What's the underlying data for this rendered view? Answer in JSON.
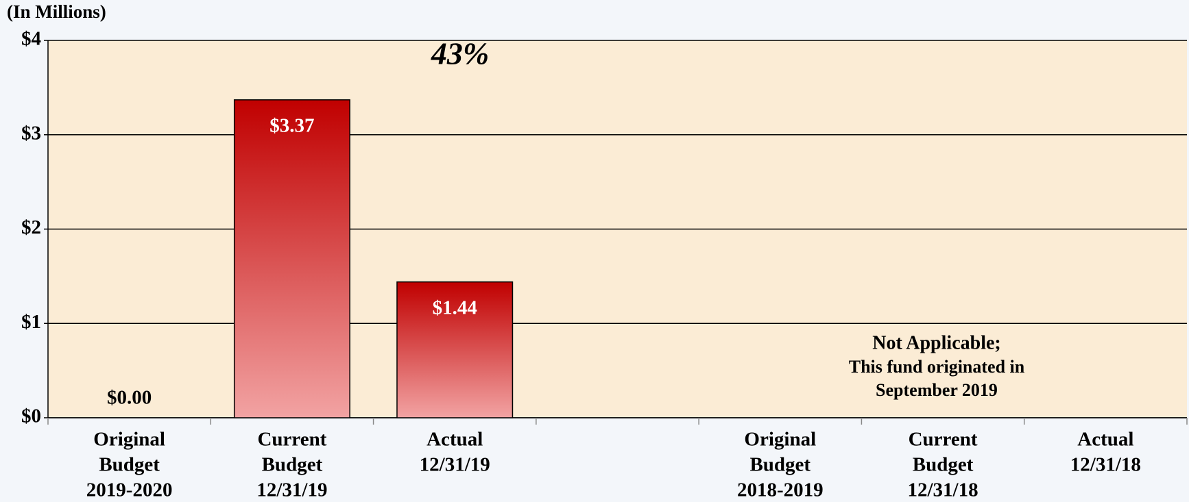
{
  "chart_data": {
    "type": "bar",
    "y_axis_label": "(In Millions)",
    "categories": [
      [
        "Original",
        "Budget",
        "2019-2020"
      ],
      [
        "Current",
        "Budget",
        "12/31/19"
      ],
      [
        "Actual",
        "12/31/19"
      ],
      null,
      [
        "Original",
        "Budget",
        "2018-2019"
      ],
      [
        "Current",
        "Budget",
        "12/31/18"
      ],
      [
        "Actual",
        "12/31/18"
      ]
    ],
    "values": [
      0,
      3.37,
      1.44,
      null,
      null,
      null,
      null
    ],
    "value_labels": [
      "$0.00",
      "$3.37",
      "$1.44",
      null,
      null,
      null,
      null
    ],
    "color": "#c00000",
    "ylim": [
      0,
      4
    ],
    "yticks": [
      {
        "value": 0,
        "label": "$0"
      },
      {
        "value": 1,
        "label": "$1"
      },
      {
        "value": 2,
        "label": "$2"
      },
      {
        "value": 3,
        "label": "$3"
      },
      {
        "value": 4,
        "label": "$4"
      }
    ],
    "grid": true,
    "annotations": [
      "43%",
      "Not Applicable;",
      "This fund originated in",
      "September 2019"
    ]
  }
}
